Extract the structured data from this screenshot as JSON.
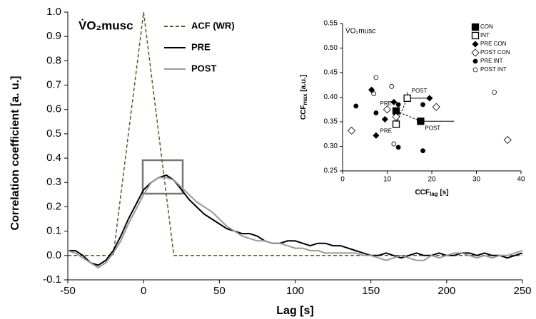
{
  "chart_data": [
    {
      "type": "line",
      "title": "V̇O₂musc",
      "x_label": "Lag [s]",
      "y_label": "Correlation coefficient [a. u.]",
      "xlim": [
        -50,
        250
      ],
      "ylim": [
        -0.1,
        1.0
      ],
      "xticks": [
        -50,
        0,
        50,
        100,
        150,
        200,
        250
      ],
      "yticks": [
        -0.1,
        {
          "value": 0,
          "label": "0.0"
        },
        0.1,
        0.2,
        0.3,
        0.4,
        0.5,
        0.6,
        0.7,
        0.8,
        0.9,
        {
          "value": 1,
          "label": "1.0"
        }
      ],
      "x": [
        -50,
        -45,
        -40,
        -35,
        -30,
        -25,
        -20,
        -15,
        -10,
        -5,
        0,
        5,
        10,
        15,
        20,
        25,
        30,
        35,
        40,
        45,
        50,
        55,
        60,
        65,
        70,
        75,
        80,
        85,
        90,
        95,
        100,
        105,
        110,
        115,
        120,
        125,
        130,
        135,
        140,
        145,
        150,
        155,
        160,
        165,
        170,
        175,
        180,
        185,
        190,
        195,
        200,
        205,
        210,
        215,
        220,
        225,
        230,
        235,
        240,
        245,
        250
      ],
      "series": [
        {
          "name": "ACF (WR)",
          "color": "#5a5a2a",
          "dashed": true,
          "values": [
            0,
            0,
            0,
            0,
            0,
            0,
            0,
            0.25,
            0.5,
            0.75,
            1,
            0.75,
            0.5,
            0.25,
            0,
            0,
            0,
            0,
            0,
            0,
            0,
            0,
            0,
            0,
            0,
            0,
            0,
            0,
            0,
            0,
            0,
            0,
            0,
            0,
            0,
            0,
            0,
            0,
            0,
            0,
            0,
            0,
            0,
            0,
            0,
            0,
            0,
            0,
            0,
            0,
            0,
            0,
            0,
            0,
            0,
            0,
            0,
            0,
            0,
            0,
            0
          ]
        },
        {
          "name": "PRE",
          "color": "#000000",
          "dashed": false,
          "values": [
            0.02,
            0.02,
            0.0,
            -0.03,
            -0.04,
            -0.02,
            0.02,
            0.08,
            0.15,
            0.21,
            0.27,
            0.3,
            0.32,
            0.33,
            0.31,
            0.27,
            0.23,
            0.2,
            0.17,
            0.15,
            0.13,
            0.11,
            0.1,
            0.09,
            0.09,
            0.08,
            0.06,
            0.05,
            0.05,
            0.06,
            0.06,
            0.05,
            0.04,
            0.05,
            0.05,
            0.04,
            0.04,
            0.03,
            0.02,
            0.01,
            0.0,
            0.0,
            0.01,
            0.0,
            -0.01,
            0.0,
            0.01,
            0.0,
            0.0,
            0.01,
            0.0,
            0.0,
            0.01,
            0.01,
            0.0,
            0.01,
            0.0,
            0.0,
            -0.01,
            0.0,
            0.01
          ]
        },
        {
          "name": "POST",
          "color": "#999999",
          "dashed": false,
          "values": [
            0.02,
            0.01,
            -0.01,
            -0.03,
            -0.05,
            -0.03,
            0.01,
            0.06,
            0.13,
            0.19,
            0.25,
            0.3,
            0.32,
            0.32,
            0.31,
            0.28,
            0.25,
            0.22,
            0.2,
            0.18,
            0.15,
            0.12,
            0.1,
            0.08,
            0.07,
            0.06,
            0.06,
            0.05,
            0.05,
            0.04,
            0.03,
            0.03,
            0.02,
            0.02,
            0.01,
            0.01,
            0.01,
            0.01,
            0.01,
            0.0,
            0.0,
            -0.01,
            -0.02,
            -0.01,
            0.0,
            -0.01,
            -0.02,
            -0.02,
            0.0,
            -0.01,
            0.0,
            0.01,
            0.01,
            0.0,
            -0.01,
            0.0,
            -0.01,
            0.0,
            0.0,
            0.01,
            0.02
          ]
        }
      ]
    },
    {
      "type": "scatter",
      "title": "V̇O₂musc",
      "x_label": [
        "CCF",
        "lag",
        " [s]"
      ],
      "y_label": [
        "CCF",
        "max",
        " [a.u.]"
      ],
      "xlim": [
        0,
        40
      ],
      "ylim": [
        0.25,
        0.55
      ],
      "xticks": [
        0,
        10,
        20,
        30,
        40
      ],
      "yticks": [
        0.25,
        {
          "value": 0.3,
          "label": "0.30"
        },
        0.35,
        {
          "value": 0.4,
          "label": "0.40"
        },
        0.45,
        {
          "value": 0.5,
          "label": "0.50"
        },
        0.55
      ],
      "series": [
        {
          "name": "CON",
          "marker": "square",
          "filled": true,
          "size": 9,
          "connect": true,
          "point_labels": [
            "PRE",
            "POST"
          ],
          "x": [
            12,
            17.5
          ],
          "y": [
            0.372,
            0.351
          ],
          "xerr": [
            null,
            7.5
          ],
          "yerr": [
            null,
            null
          ]
        },
        {
          "name": "INT",
          "marker": "square",
          "filled": false,
          "size": 9,
          "connect": true,
          "point_labels": [
            "PRE",
            "POST"
          ],
          "x": [
            12,
            14.5
          ],
          "y": [
            0.345,
            0.398
          ],
          "xerr": [
            null,
            5.5
          ],
          "yerr": [
            null,
            0.012
          ]
        },
        {
          "name": "PRE CON",
          "marker": "diamond",
          "filled": true,
          "size": 4,
          "x": [
            6.5,
            11.5,
            19.5,
            7.5,
            9.5
          ],
          "y": [
            0.415,
            0.39,
            0.398,
            0.322,
            0.355
          ]
        },
        {
          "name": "POST CON",
          "marker": "diamond",
          "filled": false,
          "size": 5,
          "x": [
            2,
            10,
            21,
            37,
            12
          ],
          "y": [
            0.332,
            0.375,
            0.38,
            0.313,
            0.36
          ]
        },
        {
          "name": "PRE INT",
          "marker": "circle",
          "filled": true,
          "size": 3,
          "x": [
            3,
            7.5,
            12.5,
            18,
            12.5,
            18
          ],
          "y": [
            0.382,
            0.368,
            0.298,
            0.291,
            0.385,
            0.385
          ]
        },
        {
          "name": "POST INT",
          "marker": "circle",
          "filled": false,
          "size": 3,
          "x": [
            7.5,
            7,
            11,
            11.5,
            34
          ],
          "y": [
            0.44,
            0.407,
            0.422,
            0.305,
            0.41
          ]
        }
      ]
    }
  ]
}
